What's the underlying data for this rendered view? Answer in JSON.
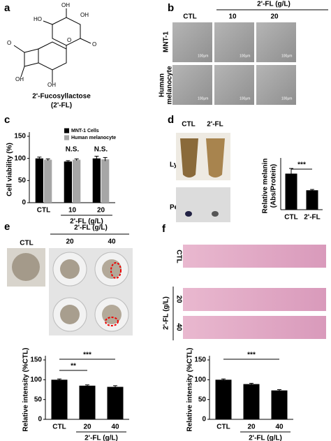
{
  "panels": {
    "letters": [
      "a",
      "b",
      "c",
      "d",
      "e",
      "f"
    ],
    "a": {
      "name": "2'-Fucosyllactose",
      "abbr": "(2'-FL)",
      "atoms": [
        "OH",
        "OH",
        "HO",
        "O",
        "O",
        "O",
        "OH",
        "OH"
      ]
    },
    "b": {
      "ctl": "CTL",
      "group": "2'-FL (g/L)",
      "doses": [
        "10",
        "20"
      ],
      "row1": "MNT-1",
      "row2": [
        "Human",
        "melanocyte"
      ],
      "scale": "100μm"
    },
    "d": {
      "cols": [
        "CTL",
        "2'-FL"
      ],
      "rows": [
        "Lysate",
        "Pellet"
      ]
    },
    "e": {
      "ctl": "CTL",
      "group": "2'-FL (g/L)",
      "doses": [
        "20",
        "40"
      ]
    },
    "f": {
      "rows": [
        "CTL",
        "20",
        "40"
      ],
      "group": "2'-FL (g/L)"
    }
  },
  "chart_data": [
    {
      "type": "bar",
      "ylabel": [
        "Cell viability (%)"
      ],
      "categories": [
        "CTL",
        "10",
        "20"
      ],
      "xlabel": "2'-FL (g/L)",
      "series": [
        {
          "name": "MNT-1 Cells",
          "color": "#000000",
          "values": [
            100,
            93,
            100
          ],
          "errors": [
            3,
            2,
            5
          ]
        },
        {
          "name": "Human melanocyte",
          "color": "#a6a6a6",
          "values": [
            97,
            97,
            98
          ],
          "errors": [
            2,
            2,
            4
          ]
        }
      ],
      "annotations": [
        "N.S.",
        "N.S."
      ],
      "ylim": [
        0,
        150
      ],
      "yticks": [
        0,
        50,
        100,
        150
      ]
    },
    {
      "type": "bar",
      "ylabel": [
        "Relative melanin",
        "(Abs/Protein)"
      ],
      "categories": [
        "CTL",
        "2'-FL"
      ],
      "values": [
        0.91,
        0.49
      ],
      "errors": [
        0.13,
        0.02
      ],
      "color": "#000000",
      "annotations": [
        "***"
      ],
      "ylim": [
        0,
        1.2
      ]
    },
    {
      "type": "bar",
      "ylabel": [
        "Relative intensity (%CTL)"
      ],
      "categories": [
        "CTL",
        "20",
        "40"
      ],
      "xlabel": "2'-FL (g/L)",
      "values": [
        100,
        85,
        82
      ],
      "errors": [
        2,
        2,
        3
      ],
      "color": "#000000",
      "annotations": [
        "***",
        "**"
      ],
      "ylim": [
        0,
        150
      ],
      "yticks": [
        0,
        50,
        100,
        150
      ]
    },
    {
      "type": "bar",
      "ylabel": [
        "Relative intensity (%CTL)"
      ],
      "categories": [
        "CTL",
        "20",
        "40"
      ],
      "xlabel": "2'-FL (g/L)",
      "values": [
        100,
        89,
        73
      ],
      "errors": [
        2,
        2,
        2
      ],
      "color": "#000000",
      "annotations": [
        "***"
      ],
      "ylim": [
        0,
        150
      ],
      "yticks": [
        0,
        50,
        100,
        150
      ]
    }
  ]
}
